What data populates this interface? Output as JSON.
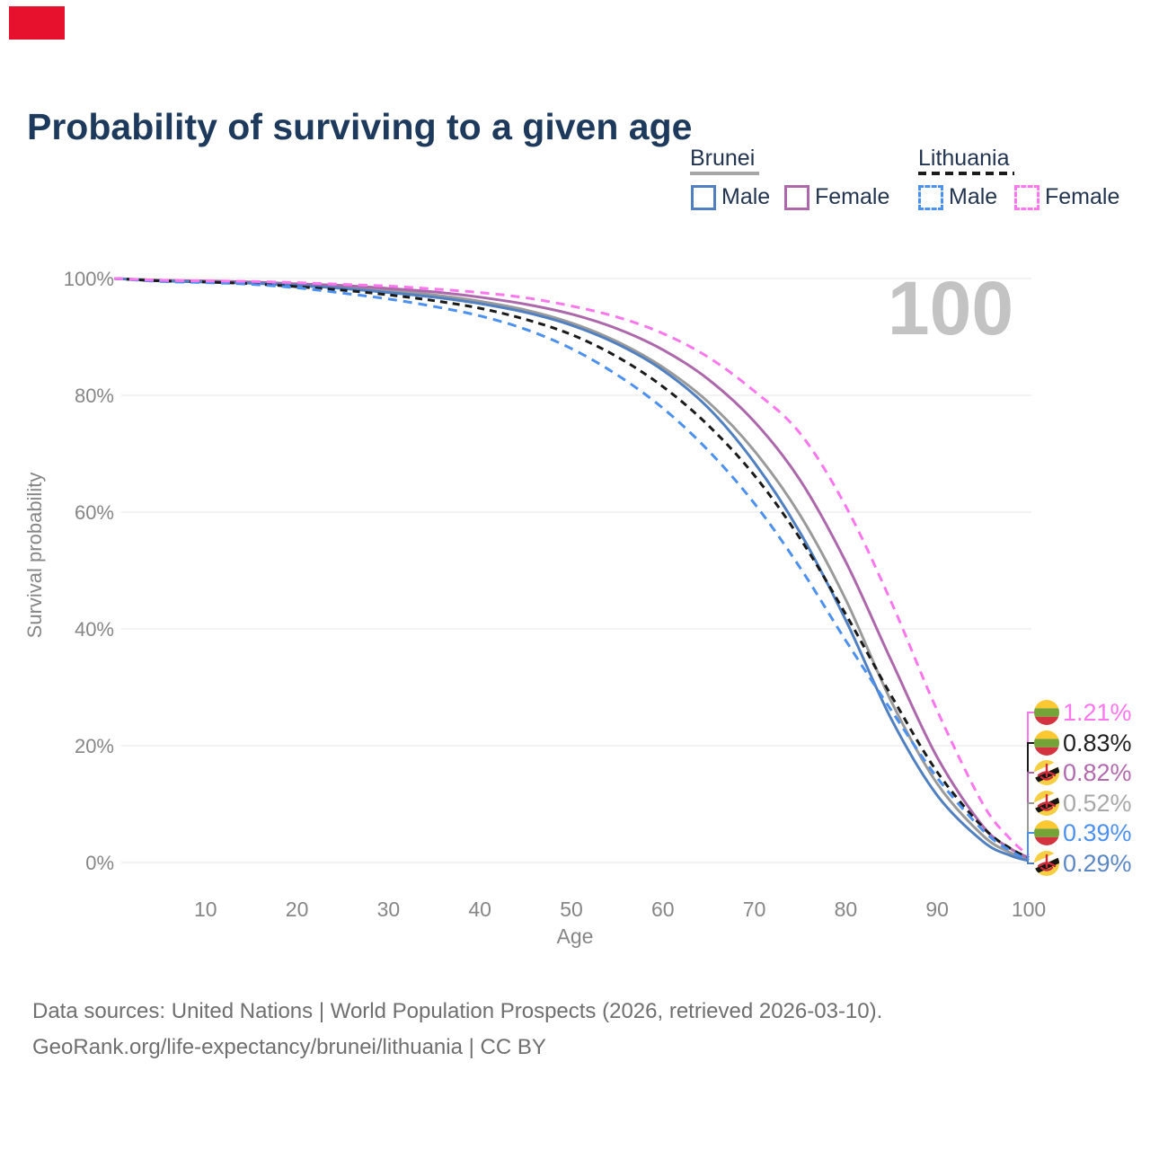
{
  "red_marker": {
    "color": "#E8112D"
  },
  "title": {
    "text": "Probability of surviving to a given age",
    "color": "#1D3A5C"
  },
  "legend": {
    "groups": [
      {
        "label": "Brunei",
        "line_style": "solid",
        "line_color": "#A6A6A6",
        "items": [
          {
            "label": "Male",
            "color": "#5080C2",
            "dashed": false
          },
          {
            "label": "Female",
            "color": "#AD68AC",
            "dashed": false
          }
        ]
      },
      {
        "label": "Lithuania",
        "line_style": "dashed",
        "line_color": "#1A1A1A",
        "items": [
          {
            "label": "Male",
            "color": "#4C90F0",
            "dashed": true
          },
          {
            "label": "Female",
            "color": "#FC77EE",
            "dashed": true
          }
        ]
      }
    ]
  },
  "chart_data": {
    "type": "line",
    "title": "Probability of surviving to a given age",
    "xlabel": "Age",
    "ylabel": "Survival probability",
    "xlim": [
      0,
      100
    ],
    "ylim": [
      0,
      100
    ],
    "xticks": [
      10,
      20,
      30,
      40,
      50,
      60,
      70,
      80,
      90,
      100
    ],
    "yticks": [
      "0%",
      "20%",
      "40%",
      "60%",
      "80%",
      "100%"
    ],
    "grid": true,
    "watermark": "100",
    "legend_position": "top-right",
    "x": [
      0,
      5,
      10,
      15,
      20,
      25,
      30,
      35,
      40,
      45,
      50,
      55,
      60,
      65,
      70,
      75,
      80,
      85,
      90,
      95,
      98,
      100
    ],
    "series": [
      {
        "name": "Lithuania Female",
        "country": "lithuania",
        "sex": "female",
        "color": "#FC77EE",
        "dashed": true,
        "end_label": "1.21%",
        "end_value": 1.21,
        "values": [
          100,
          99.7,
          99.6,
          99.5,
          99.3,
          99.0,
          98.7,
          98.2,
          97.6,
          96.7,
          95.3,
          93.4,
          90.6,
          86.5,
          80.7,
          73.5,
          61.0,
          44.5,
          26.0,
          10.0,
          4.0,
          1.21
        ]
      },
      {
        "name": "Lithuania Total",
        "country": "lithuania",
        "sex": "total",
        "color": "#1A1A1A",
        "dashed": true,
        "end_label": "0.83%",
        "end_value": 0.83,
        "values": [
          100,
          99.6,
          99.4,
          99.1,
          98.6,
          98.0,
          97.2,
          96.2,
          94.9,
          93.0,
          90.4,
          86.6,
          81.5,
          74.8,
          66.3,
          55.5,
          42.5,
          28.5,
          15.5,
          6.0,
          2.4,
          0.83
        ]
      },
      {
        "name": "Brunei Female",
        "country": "brunei",
        "sex": "female",
        "color": "#AD68AC",
        "dashed": false,
        "end_label": "0.82%",
        "end_value": 0.82,
        "values": [
          100,
          99.7,
          99.6,
          99.4,
          99.1,
          98.8,
          98.3,
          97.7,
          96.8,
          95.6,
          93.9,
          91.4,
          87.8,
          82.7,
          75.5,
          65.5,
          51.5,
          34.5,
          18.0,
          6.2,
          2.4,
          0.82
        ]
      },
      {
        "name": "Brunei Total",
        "country": "brunei",
        "sex": "total",
        "color": "#9A9A9A",
        "dashed": false,
        "end_label": "0.52%",
        "end_value": 0.52,
        "values": [
          100,
          99.7,
          99.5,
          99.3,
          99.0,
          98.6,
          98.0,
          97.2,
          96.1,
          94.6,
          92.4,
          89.2,
          84.8,
          78.8,
          70.5,
          59.5,
          45.0,
          27.5,
          13.5,
          4.6,
          1.7,
          0.52
        ]
      },
      {
        "name": "Lithuania Male",
        "country": "lithuania",
        "sex": "male",
        "color": "#4C90F0",
        "dashed": true,
        "end_label": "0.39%",
        "end_value": 0.39,
        "values": [
          100,
          99.5,
          99.3,
          99.0,
          98.4,
          97.5,
          96.5,
          95.2,
          93.6,
          91.3,
          88.0,
          83.5,
          77.8,
          70.5,
          61.5,
          50.5,
          38.0,
          26.0,
          14.5,
          5.5,
          2.0,
          0.39
        ]
      },
      {
        "name": "Brunei Male",
        "country": "brunei",
        "sex": "male",
        "color": "#5080C2",
        "dashed": false,
        "end_label": "0.29%",
        "end_value": 0.29,
        "values": [
          100,
          99.6,
          99.4,
          99.2,
          98.8,
          98.3,
          97.6,
          96.8,
          95.7,
          94.2,
          92.0,
          88.8,
          84.3,
          77.8,
          68.5,
          56.5,
          41.5,
          24.5,
          11.5,
          3.6,
          1.2,
          0.29
        ]
      }
    ],
    "end_label_colors": [
      "#FC77EE",
      "#1F1F1F",
      "#B269AE",
      "#A8A8A8",
      "#4C90F0",
      "#5B87C5"
    ],
    "axis_text_color": "#868686",
    "grid_color": "#ECECEC",
    "watermark_color": "#C3C3C3",
    "flag_colors": {
      "lithuania": {
        "yellow": "#FCC832",
        "green": "#74A338",
        "red": "#D3333E"
      },
      "brunei": {
        "yellow": "#F5CE42",
        "white": "#FFFFFF",
        "black": "#151515",
        "crest_red": "#CF2A3A"
      }
    }
  },
  "footer": {
    "line1": "Data sources: United Nations | World Population Prospects (2026, retrieved 2026-03-10).",
    "line2": "GeoRank.org/life-expectancy/brunei/lithuania | CC BY"
  }
}
